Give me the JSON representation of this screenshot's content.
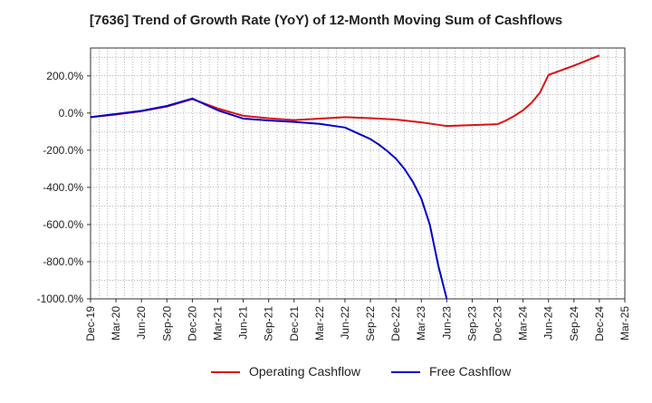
{
  "chart_data": {
    "type": "line",
    "title": "[7636]  Trend of Growth Rate (YoY) of 12-Month Moving Sum of Cashflows",
    "xlabel": "",
    "ylabel": "",
    "x_ticks": [
      "Dec-19",
      "Mar-20",
      "Jun-20",
      "Sep-20",
      "Dec-20",
      "Mar-21",
      "Jun-21",
      "Sep-21",
      "Dec-21",
      "Mar-22",
      "Jun-22",
      "Sep-22",
      "Dec-22",
      "Mar-23",
      "Jun-23",
      "Sep-23",
      "Dec-23",
      "Mar-24",
      "Jun-24",
      "Sep-24",
      "Dec-24",
      "Mar-25"
    ],
    "y_ticks": [
      200,
      0,
      -200,
      -400,
      -600,
      -800,
      -1000
    ],
    "y_tick_labels": [
      "200.0%",
      "0.0%",
      "-200.0%",
      "-400.0%",
      "-600.0%",
      "-800.0%",
      "-1000.0%"
    ],
    "ylim": [
      -1000,
      350
    ],
    "y_unit": "%",
    "grid": true,
    "legend_position": "bottom-center",
    "series": [
      {
        "name": "Operating Cashflow",
        "color": "#dd1111",
        "x": [
          "Dec-19",
          "Mar-20",
          "Jun-20",
          "Sep-20",
          "Dec-20",
          "Mar-21",
          "Jun-21",
          "Sep-21",
          "Dec-21",
          "Mar-22",
          "Jun-22",
          "Sep-22",
          "Dec-22",
          "Mar-23",
          "Jun-23",
          "Sep-23",
          "Dec-23",
          "Jan-24",
          "Feb-24",
          "Mar-24",
          "Apr-24",
          "May-24",
          "Jun-24",
          "Sep-24",
          "Dec-24"
        ],
        "values": [
          -22,
          -8,
          10,
          35,
          75,
          25,
          -15,
          -28,
          -38,
          -30,
          -22,
          -28,
          -35,
          -50,
          -70,
          -65,
          -60,
          -40,
          -15,
          15,
          55,
          110,
          205,
          255,
          310
        ]
      },
      {
        "name": "Free Cashflow",
        "color": "#0000cc",
        "x": [
          "Dec-19",
          "Mar-20",
          "Jun-20",
          "Sep-20",
          "Dec-20",
          "Mar-21",
          "Jun-21",
          "Sep-21",
          "Dec-21",
          "Mar-22",
          "Jun-22",
          "Sep-22",
          "Oct-22",
          "Nov-22",
          "Dec-22",
          "Jan-23",
          "Feb-23",
          "Mar-23",
          "Apr-23",
          "May-23",
          "Jun-23"
        ],
        "values": [
          -22,
          -5,
          12,
          38,
          78,
          15,
          -30,
          -40,
          -48,
          -58,
          -78,
          -140,
          -170,
          -205,
          -245,
          -300,
          -370,
          -460,
          -600,
          -820,
          -1000
        ]
      }
    ]
  }
}
